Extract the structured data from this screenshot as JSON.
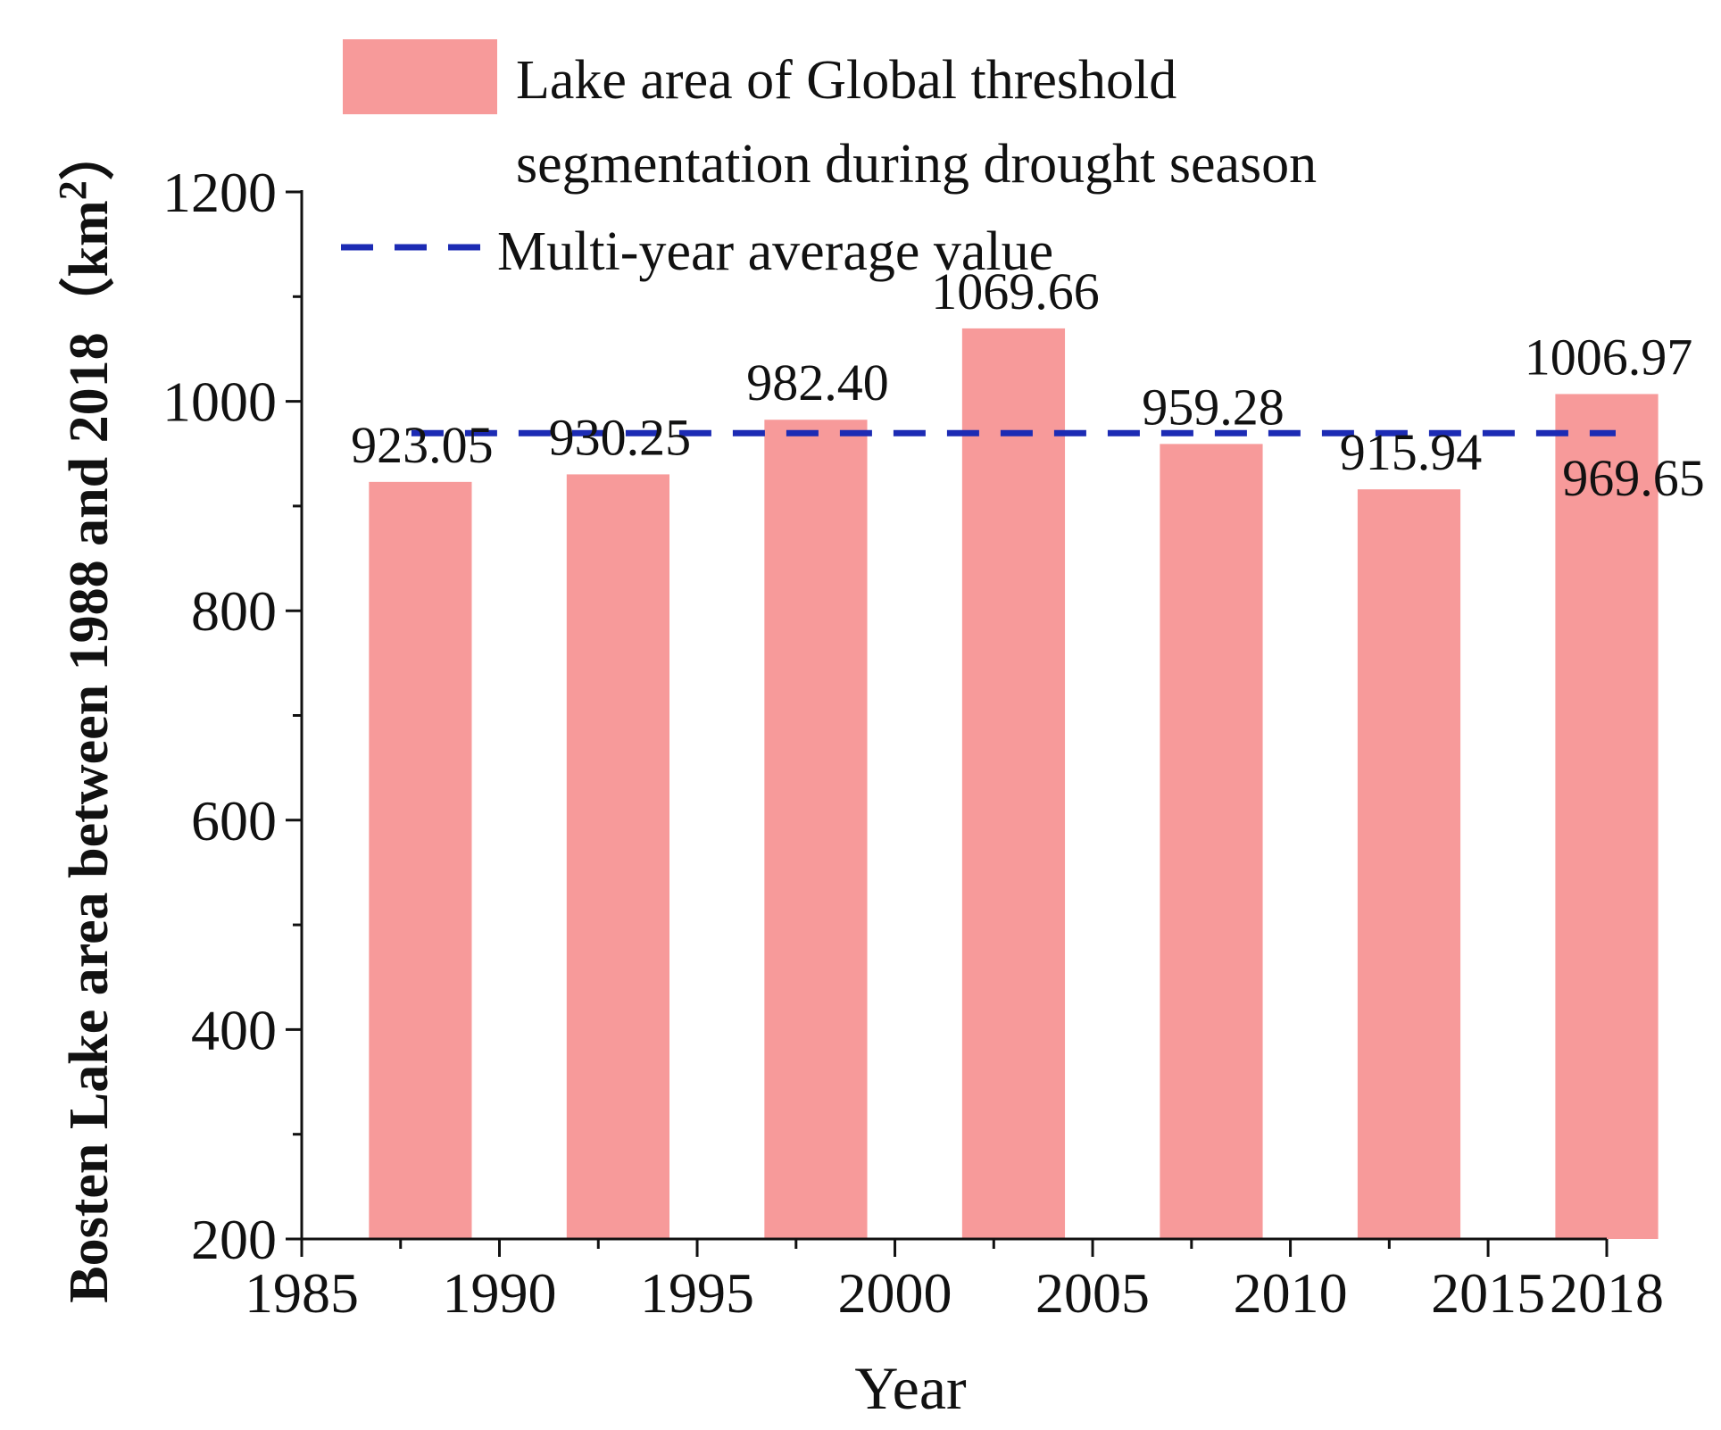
{
  "chart_data": {
    "type": "bar",
    "title": "",
    "xlabel": "Year",
    "ylabel": "Bosten Lake area between 1988 and 2018",
    "ylabel_unit_open": "（km",
    "ylabel_unit_sup": "2",
    "ylabel_unit_close": "）",
    "xlim": [
      1985,
      2018
    ],
    "ylim": [
      200,
      1200
    ],
    "x_ticks": [
      1985,
      1990,
      1995,
      2000,
      2005,
      2010,
      2015,
      2018
    ],
    "x_tick_labels": [
      "1985",
      "1990",
      "1995",
      "2000",
      "2005",
      "2010",
      "2015",
      "2018"
    ],
    "y_ticks": [
      200,
      400,
      600,
      800,
      1000,
      1200
    ],
    "y_tick_labels": [
      "200",
      "400",
      "600",
      "800",
      "1000",
      "1200"
    ],
    "bar_width_years": 2.6,
    "series": [
      {
        "name": "Lake area of Global threshold segmentation during drought season",
        "legend_line1": "Lake area of Global threshold",
        "legend_line2": "segmentation during drought season",
        "x": [
          1988,
          1993,
          1998,
          2003,
          2008,
          2013,
          2018
        ],
        "values": [
          923.05,
          930.25,
          982.4,
          1069.66,
          959.28,
          915.94,
          1006.97
        ],
        "value_labels": [
          "923.05",
          "930.25",
          "982.40",
          "1069.66",
          "959.28",
          "915.94",
          "1006.97"
        ],
        "color": "#f79a9a"
      }
    ],
    "reference_line": {
      "name": "Multi-year average value",
      "value": 969.65,
      "value_label": "969.65",
      "x_range": [
        1988,
        2018
      ],
      "color": "#1c2bb4",
      "style": "dashed"
    },
    "legend_position": "top"
  }
}
